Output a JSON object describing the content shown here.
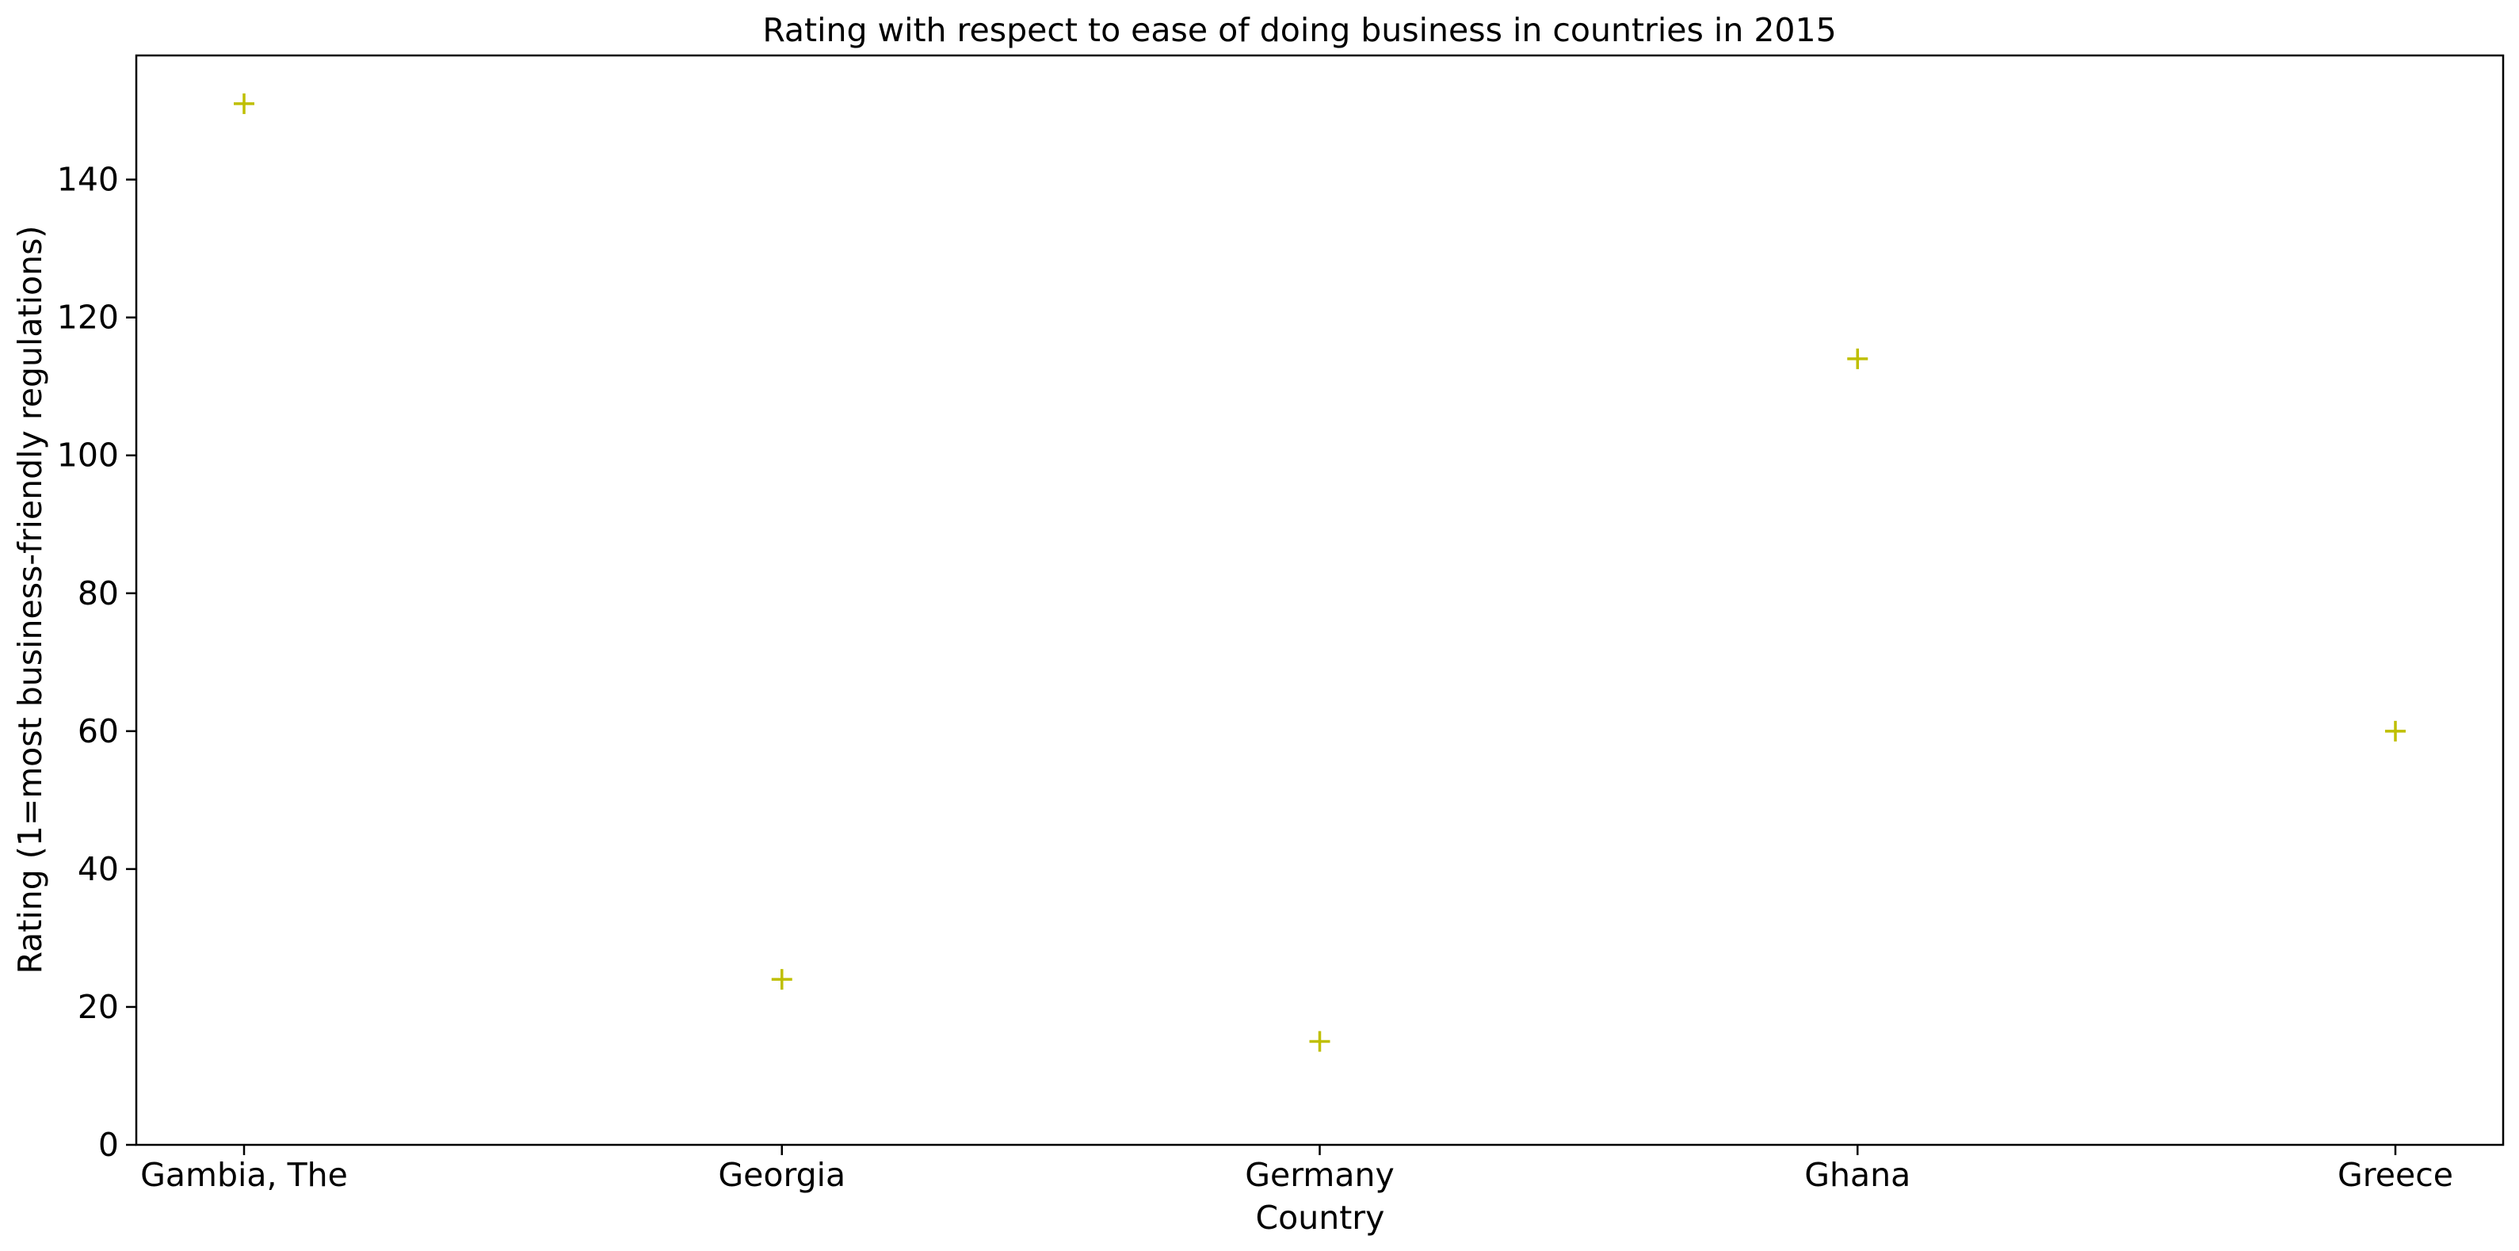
{
  "chart_data": {
    "type": "scatter",
    "title": "Rating with respect to ease of doing business in countries in 2015",
    "xlabel": "Country",
    "ylabel": "Rating (1=most business-friendly regulations)",
    "categories": [
      "Gambia, The",
      "Georgia",
      "Germany",
      "Ghana",
      "Greece"
    ],
    "series": [
      {
        "values": [
          151,
          24,
          15,
          114,
          60
        ],
        "color": "#bfbf00",
        "marker": "plus"
      }
    ],
    "ylim": [
      0,
      158
    ],
    "yticks": [
      0,
      20,
      40,
      60,
      80,
      100,
      120,
      140
    ],
    "grid": false,
    "legend": "none"
  }
}
